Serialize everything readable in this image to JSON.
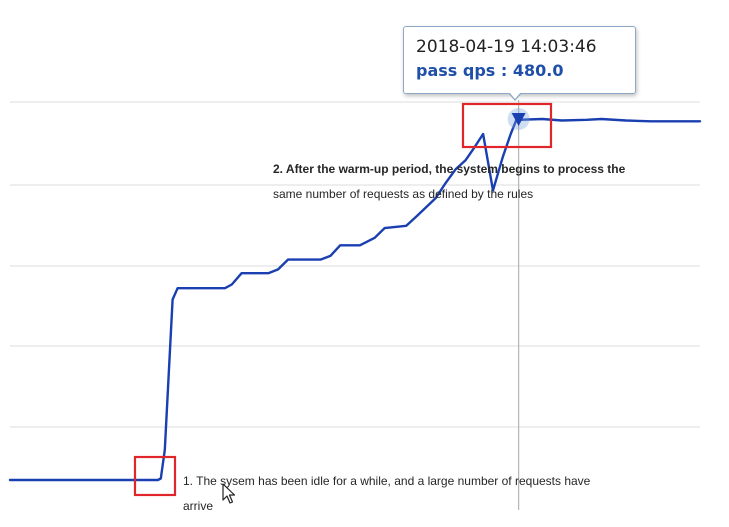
{
  "chart_data": {
    "type": "line",
    "title": "",
    "xlabel": "",
    "ylabel": "",
    "grid": true,
    "ylim": [
      0,
      550
    ],
    "xlim": [
      0,
      700
    ],
    "series": [
      {
        "values": [
          [
            0,
            0
          ],
          [
            150,
            0
          ],
          [
            153,
            2
          ],
          [
            157,
            40
          ],
          [
            161,
            140
          ],
          [
            165,
            240
          ],
          [
            170,
            255
          ],
          [
            200,
            255
          ],
          [
            218,
            255
          ],
          [
            225,
            260
          ],
          [
            235,
            275
          ],
          [
            262,
            275
          ],
          [
            272,
            280
          ],
          [
            282,
            293
          ],
          [
            315,
            293
          ],
          [
            325,
            298
          ],
          [
            335,
            312
          ],
          [
            355,
            312
          ],
          [
            370,
            322
          ],
          [
            380,
            335
          ],
          [
            402,
            338
          ],
          [
            412,
            350
          ],
          [
            420,
            360
          ],
          [
            432,
            375
          ],
          [
            442,
            395
          ],
          [
            452,
            413
          ],
          [
            462,
            425
          ],
          [
            470,
            440
          ],
          [
            480,
            460
          ],
          [
            490,
            385
          ],
          [
            500,
            430
          ],
          [
            508,
            460
          ],
          [
            514,
            480
          ],
          [
            516,
            479
          ],
          [
            540,
            480
          ],
          [
            560,
            478
          ],
          [
            585,
            479
          ],
          [
            600,
            480
          ],
          [
            625,
            478
          ],
          [
            650,
            477
          ],
          [
            680,
            477
          ],
          [
            700,
            477
          ]
        ]
      }
    ],
    "highlight": {
      "x": 516,
      "y": 480
    },
    "color": "#1a3fb0"
  },
  "tooltip": {
    "date": "2018-04-19 14:03:46",
    "value_label": "pass qps : 480.0"
  },
  "annotations": {
    "note_2_line1": "2. After the warm-up period, the system begins to process the",
    "note_2_line2": "same number of requests as defined by the rules",
    "note_1_line1": "1. The sysem has been idle for a while, and a large number of requests have",
    "note_1_line2": "arrive"
  },
  "colors": {
    "line": "#1a3fb0",
    "highlight_box": "#e0262a",
    "tooltip_border": "#8fa8c8",
    "tooltip_value": "#1f4fa8"
  }
}
